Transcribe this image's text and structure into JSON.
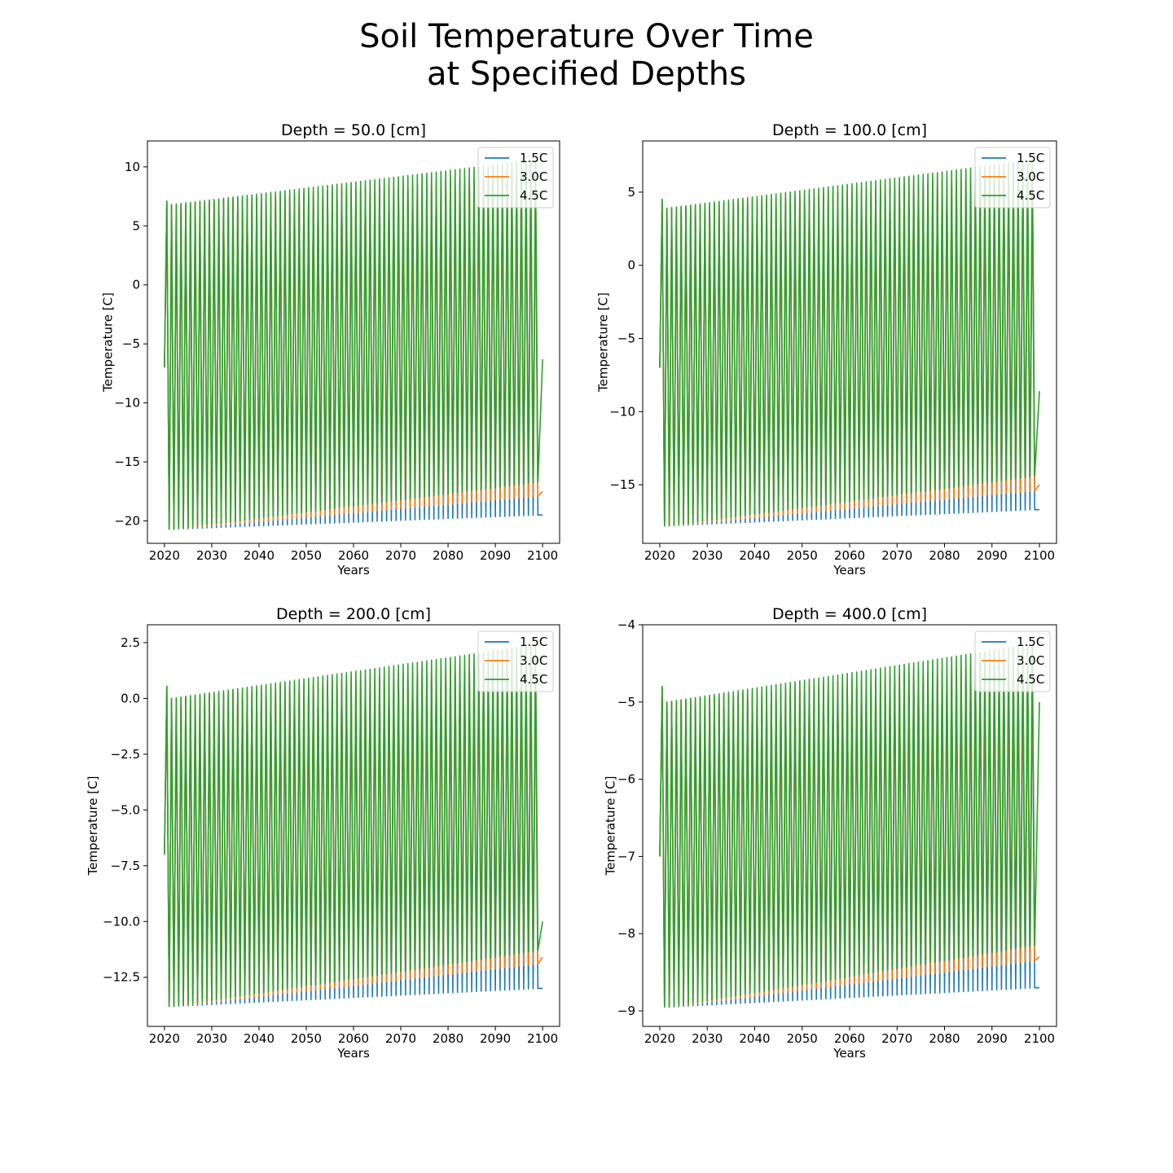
{
  "figure": {
    "title_line1": "Soil Temperature Over Time",
    "title_line2": "at Specified Depths"
  },
  "chart_data": [
    {
      "type": "line",
      "title": "Depth = 50.0 [cm]",
      "xlabel": "Years",
      "ylabel": "Temperature [C]",
      "xlim": [
        2020,
        2100
      ],
      "ylim": [
        -21.9,
        12.2
      ],
      "xticks": [
        2020,
        2030,
        2040,
        2050,
        2060,
        2070,
        2080,
        2090,
        2100
      ],
      "yticks": [
        -20,
        -15,
        -10,
        -5,
        0,
        5,
        10
      ],
      "legend_position": "upper-right",
      "grid": false,
      "series": [
        {
          "name": "1.5C",
          "color": "#1f77b4",
          "start": -7.0,
          "first_peak": 7.1,
          "peak_start": 6.8,
          "peak_end": 9.0,
          "trough_start": -20.7,
          "trough_end": -19.5,
          "end": -19.5
        },
        {
          "name": "3.0C",
          "color": "#ff7f0e",
          "start": -7.0,
          "first_peak": 7.1,
          "peak_start": 6.8,
          "peak_end": 9.6,
          "trough_start": -20.7,
          "trough_end": -17.9,
          "end": -17.5
        },
        {
          "name": "4.5C",
          "color": "#2ca02c",
          "start": -7.0,
          "first_peak": 7.1,
          "peak_start": 6.8,
          "peak_end": 10.6,
          "trough_start": -20.7,
          "trough_end": -16.7,
          "end": -6.3
        }
      ]
    },
    {
      "type": "line",
      "title": "Depth = 100.0 [cm]",
      "xlabel": "Years",
      "ylabel": "Temperature [C]",
      "xlim": [
        2020,
        2100
      ],
      "ylim": [
        -19.0,
        8.5
      ],
      "xticks": [
        2020,
        2030,
        2040,
        2050,
        2060,
        2070,
        2080,
        2090,
        2100
      ],
      "yticks": [
        -15,
        -10,
        -5,
        0,
        5
      ],
      "legend_position": "upper-right",
      "grid": false,
      "series": [
        {
          "name": "1.5C",
          "color": "#1f77b4",
          "start": -7.0,
          "first_peak": 4.5,
          "peak_start": 3.9,
          "peak_end": 5.8,
          "trough_start": -17.8,
          "trough_end": -16.7,
          "end": -16.7
        },
        {
          "name": "3.0C",
          "color": "#ff7f0e",
          "start": -7.0,
          "first_peak": 4.5,
          "peak_start": 3.9,
          "peak_end": 6.4,
          "trough_start": -17.8,
          "trough_end": -15.4,
          "end": -15.0
        },
        {
          "name": "4.5C",
          "color": "#2ca02c",
          "start": -7.0,
          "first_peak": 4.5,
          "peak_start": 3.9,
          "peak_end": 7.2,
          "trough_start": -17.8,
          "trough_end": -14.4,
          "end": -8.6
        }
      ]
    },
    {
      "type": "line",
      "title": "Depth = 200.0 [cm]",
      "xlabel": "Years",
      "ylabel": "Temperature [C]",
      "xlim": [
        2020,
        2100
      ],
      "ylim": [
        -14.7,
        3.3
      ],
      "xticks": [
        2020,
        2030,
        2040,
        2050,
        2060,
        2070,
        2080,
        2090,
        2100
      ],
      "yticks": [
        -12.5,
        -10.0,
        -7.5,
        -5.0,
        -2.5,
        0.0,
        2.5
      ],
      "yticklabels": [
        "−12.5",
        "−10.0",
        "−7.5",
        "−5.0",
        "−2.5",
        "0.0",
        "2.5"
      ],
      "legend_position": "upper-right",
      "grid": false,
      "series": [
        {
          "name": "1.5C",
          "color": "#1f77b4",
          "start": -7.0,
          "first_peak": 0.55,
          "peak_start": 0.0,
          "peak_end": 1.4,
          "trough_start": -13.8,
          "trough_end": -13.0,
          "end": -13.0
        },
        {
          "name": "3.0C",
          "color": "#ff7f0e",
          "start": -7.0,
          "first_peak": 0.55,
          "peak_start": 0.0,
          "peak_end": 1.8,
          "trough_start": -13.8,
          "trough_end": -11.9,
          "end": -11.6
        },
        {
          "name": "4.5C",
          "color": "#2ca02c",
          "start": -7.0,
          "first_peak": 0.55,
          "peak_start": 0.0,
          "peak_end": 2.4,
          "trough_start": -13.8,
          "trough_end": -11.3,
          "end": -10.0
        }
      ]
    },
    {
      "type": "line",
      "title": "Depth = 400.0 [cm]",
      "xlabel": "Years",
      "ylabel": "Temperature [C]",
      "xlim": [
        2020,
        2100
      ],
      "ylim": [
        -9.2,
        -4.0
      ],
      "xticks": [
        2020,
        2030,
        2040,
        2050,
        2060,
        2070,
        2080,
        2090,
        2100
      ],
      "yticks": [
        -9,
        -8,
        -7,
        -6,
        -5,
        -4
      ],
      "legend_position": "upper-right",
      "grid": false,
      "series": [
        {
          "name": "1.5C",
          "color": "#1f77b4",
          "start": -7.0,
          "first_peak": -4.8,
          "peak_start": -5.0,
          "peak_end": -4.6,
          "trough_start": -8.95,
          "trough_end": -8.7,
          "end": -8.7
        },
        {
          "name": "3.0C",
          "color": "#ff7f0e",
          "start": -7.0,
          "first_peak": -4.8,
          "peak_start": -5.0,
          "peak_end": -4.45,
          "trough_start": -8.95,
          "trough_end": -8.35,
          "end": -8.3
        },
        {
          "name": "4.5C",
          "color": "#2ca02c",
          "start": -7.0,
          "first_peak": -4.8,
          "peak_start": -5.0,
          "peak_end": -4.25,
          "trough_start": -8.95,
          "trough_end": -8.15,
          "end": -5.0
        }
      ]
    }
  ]
}
